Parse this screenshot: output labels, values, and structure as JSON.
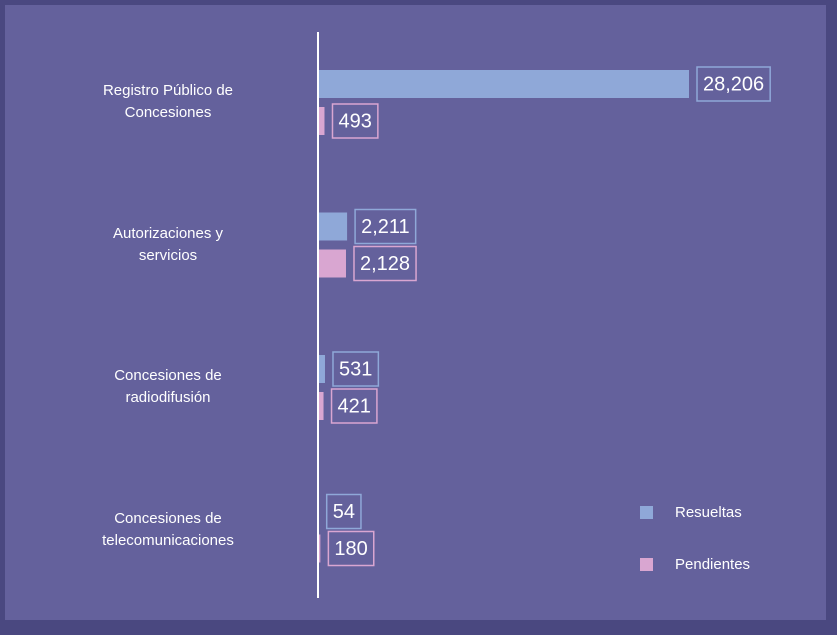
{
  "chart_data": {
    "type": "bar",
    "orientation": "horizontal",
    "categories": [
      "Registro Público de Concesiones",
      "Autorizaciones y servicios",
      "Concesiones de radiodifusión",
      "Concesiones de telecomunicaciones"
    ],
    "series": [
      {
        "name": "Resueltas",
        "color": "#8fa8d8",
        "values": [
          28206,
          2211,
          531,
          54
        ],
        "value_labels": [
          "28,206",
          "2,211",
          "531",
          "54"
        ]
      },
      {
        "name": "Pendientes",
        "color": "#d9a6d1",
        "values": [
          493,
          2128,
          421,
          180
        ],
        "value_labels": [
          "493",
          "2,128",
          "421",
          "180"
        ]
      }
    ]
  }
}
